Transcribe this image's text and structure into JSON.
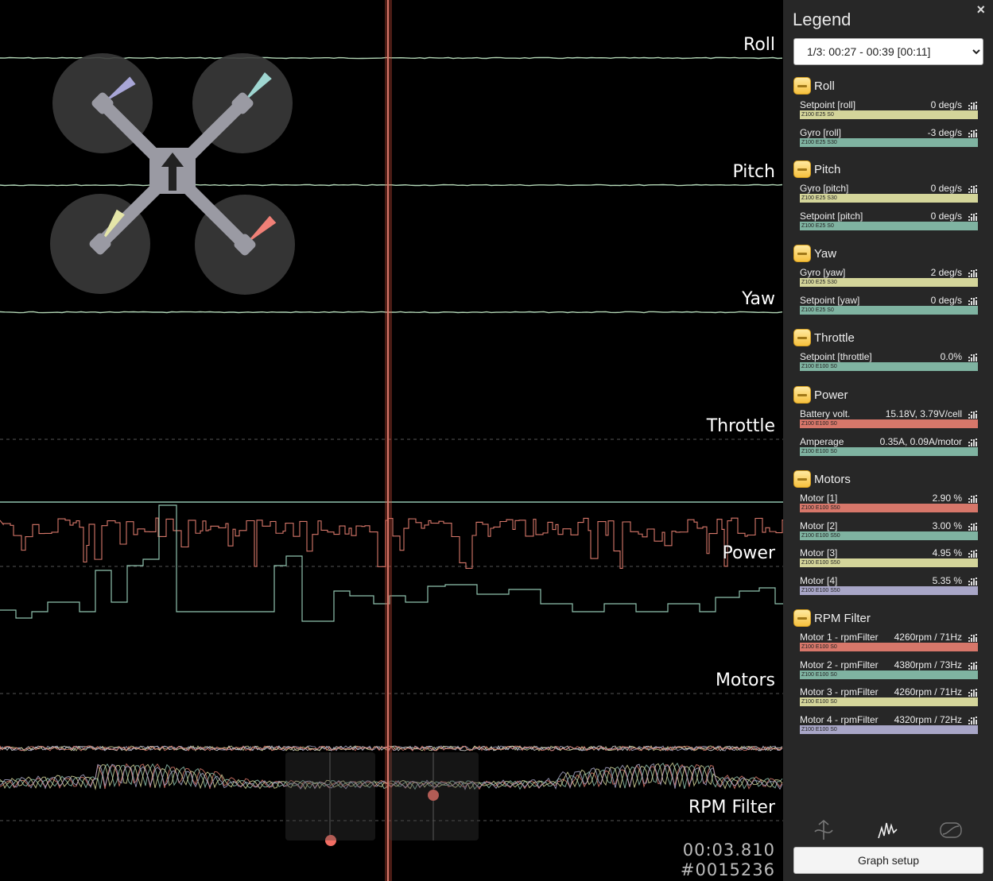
{
  "graph": {
    "labels": [
      "Roll",
      "Pitch",
      "Yaw",
      "Throttle",
      "Power",
      "Motors",
      "RPM Filter"
    ],
    "time": "00:03.810",
    "frame": "#0015236"
  },
  "legend": {
    "title": "Legend",
    "close_label": "×",
    "range_select": "1/3: 00:27 - 00:39 [00:11]",
    "groups": [
      {
        "name": "Roll",
        "fields": [
          {
            "name": "Setpoint [roll]",
            "value": "0 deg/s",
            "bar": "Z100 E25 S0",
            "color": "#d4d59a"
          },
          {
            "name": "Gyro [roll]",
            "value": "-3 deg/s",
            "bar": "Z100 E25 S30",
            "color": "#7fb3a1"
          }
        ]
      },
      {
        "name": "Pitch",
        "fields": [
          {
            "name": "Gyro [pitch]",
            "value": "0 deg/s",
            "bar": "Z100 E25 S30",
            "color": "#d4d59a"
          },
          {
            "name": "Setpoint [pitch]",
            "value": "0 deg/s",
            "bar": "Z100 E25 S0",
            "color": "#7fb3a1"
          }
        ]
      },
      {
        "name": "Yaw",
        "fields": [
          {
            "name": "Gyro [yaw]",
            "value": "2 deg/s",
            "bar": "Z100 E25 S30",
            "color": "#d4d59a"
          },
          {
            "name": "Setpoint [yaw]",
            "value": "0 deg/s",
            "bar": "Z100 E25 S0",
            "color": "#7fb3a1"
          }
        ]
      },
      {
        "name": "Throttle",
        "fields": [
          {
            "name": "Setpoint [throttle]",
            "value": "0.0%",
            "bar": "Z100 E100 S0",
            "color": "#7fb3a1"
          }
        ]
      },
      {
        "name": "Power",
        "fields": [
          {
            "name": "Battery volt.",
            "value": "15.18V, 3.79V/cell",
            "bar": "Z100 E100 S0",
            "color": "#d7776a"
          },
          {
            "name": "Amperage",
            "value": "0.35A, 0.09A/motor",
            "bar": "Z100 E100 S0",
            "color": "#7fb3a1"
          }
        ]
      },
      {
        "name": "Motors",
        "fields": [
          {
            "name": "Motor [1]",
            "value": "2.90 %",
            "bar": "Z100 E100 S50",
            "color": "#d7776a"
          },
          {
            "name": "Motor [2]",
            "value": "3.00 %",
            "bar": "Z100 E100 S50",
            "color": "#7fb3a1"
          },
          {
            "name": "Motor [3]",
            "value": "4.95 %",
            "bar": "Z100 E100 S50",
            "color": "#d4d59a"
          },
          {
            "name": "Motor [4]",
            "value": "5.35 %",
            "bar": "Z100 E100 S50",
            "color": "#a8a6c7"
          }
        ]
      },
      {
        "name": "RPM Filter",
        "fields": [
          {
            "name": "Motor 1 - rpmFilter",
            "value": "4260rpm / 71Hz",
            "bar": "Z100 E100 S0",
            "color": "#d7776a"
          },
          {
            "name": "Motor 2 - rpmFilter",
            "value": "4380rpm / 73Hz",
            "bar": "Z100 E100 S0",
            "color": "#7fb3a1"
          },
          {
            "name": "Motor 3 - rpmFilter",
            "value": "4260rpm / 71Hz",
            "bar": "Z100 E100 S0",
            "color": "#d4d59a"
          },
          {
            "name": "Motor 4 - rpmFilter",
            "value": "4320rpm / 72Hz",
            "bar": "Z100 E100 S0",
            "color": "#a8a6c7"
          }
        ]
      }
    ],
    "view_icons": [
      "analyser-icon",
      "spectrum-icon",
      "lowpass-icon"
    ],
    "setup_button": "Graph setup"
  }
}
